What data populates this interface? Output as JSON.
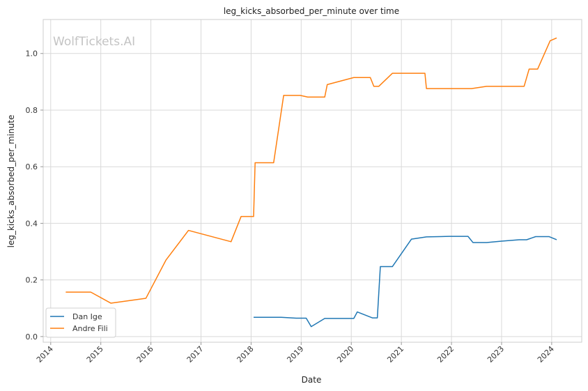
{
  "chart_data": {
    "type": "line",
    "title": "leg_kicks_absorbed_per_minute over time",
    "xlabel": "Date",
    "ylabel": "leg_kicks_absorbed_per_minute",
    "watermark": "WolfTickets.AI",
    "xlim": [
      2013.85,
      2024.6
    ],
    "ylim": [
      -0.02,
      1.12
    ],
    "x_ticks": [
      2014,
      2015,
      2016,
      2017,
      2018,
      2019,
      2020,
      2021,
      2022,
      2023,
      2024
    ],
    "x_tick_labels": [
      "2014",
      "2015",
      "2016",
      "2017",
      "2018",
      "2019",
      "2020",
      "2021",
      "2022",
      "2023",
      "2024"
    ],
    "y_ticks": [
      0.0,
      0.2,
      0.4,
      0.6,
      0.8,
      1.0
    ],
    "y_tick_labels": [
      "0.0",
      "0.2",
      "0.4",
      "0.6",
      "0.8",
      "1.0"
    ],
    "grid": true,
    "legend_position": "lower-left",
    "series": [
      {
        "name": "Dan Ige",
        "color": "#1f77b4",
        "x": [
          2018.05,
          2018.6,
          2018.9,
          2019.1,
          2019.2,
          2019.47,
          2020.05,
          2020.12,
          2020.42,
          2020.52,
          2020.58,
          2020.82,
          2021.2,
          2021.5,
          2021.95,
          2022.33,
          2022.43,
          2022.7,
          2023.0,
          2023.35,
          2023.5,
          2023.68,
          2023.95,
          2024.1
        ],
        "y": [
          0.068,
          0.068,
          0.065,
          0.065,
          0.035,
          0.064,
          0.064,
          0.087,
          0.066,
          0.066,
          0.247,
          0.247,
          0.344,
          0.352,
          0.354,
          0.354,
          0.332,
          0.332,
          0.337,
          0.342,
          0.342,
          0.353,
          0.353,
          0.342
        ]
      },
      {
        "name": "Andre Fili",
        "color": "#ff7f0e",
        "x": [
          2014.3,
          2014.8,
          2015.2,
          2015.9,
          2016.3,
          2016.75,
          2017.6,
          2017.8,
          2018.05,
          2018.08,
          2018.45,
          2018.65,
          2018.98,
          2019.13,
          2019.47,
          2019.52,
          2020.05,
          2020.38,
          2020.45,
          2020.55,
          2020.82,
          2021.47,
          2021.5,
          2022.4,
          2022.7,
          2023.45,
          2023.55,
          2023.72,
          2023.97,
          2024.1
        ],
        "y": [
          0.157,
          0.157,
          0.118,
          0.135,
          0.27,
          0.375,
          0.335,
          0.424,
          0.424,
          0.614,
          0.614,
          0.852,
          0.852,
          0.846,
          0.846,
          0.89,
          0.915,
          0.915,
          0.884,
          0.884,
          0.93,
          0.93,
          0.876,
          0.876,
          0.884,
          0.884,
          0.945,
          0.945,
          1.045,
          1.055
        ]
      }
    ]
  }
}
